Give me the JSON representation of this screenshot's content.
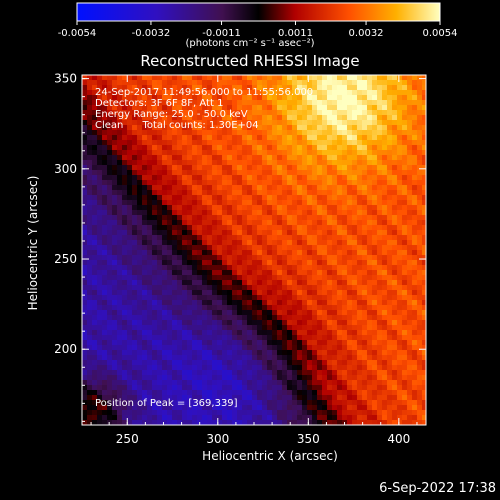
{
  "chart_data": {
    "type": "heatmap",
    "title": "Reconstructed RHESSI Image",
    "xlabel": "Heliocentric X (arcsec)",
    "ylabel": "Heliocentric Y (arcsec)",
    "xlim": [
      225,
      415
    ],
    "ylim": [
      158,
      352
    ],
    "x_ticks": [
      250,
      300,
      350,
      400
    ],
    "y_ticks": [
      200,
      250,
      300,
      350
    ],
    "colorbar": {
      "range": [
        -0.0054,
        0.0054
      ],
      "tick_values": [
        -0.0054,
        -0.0032,
        -0.0011,
        0.0011,
        0.0032,
        0.0054
      ],
      "tick_labels": [
        "-0.0054",
        "-0.0032",
        "-0.0011",
        "0.0011",
        "0.0032",
        "0.0054"
      ],
      "unit_label": "(photons cm⁻² s⁻¹ asec⁻²)"
    },
    "annotations": [
      "24-Sep-2017 11:49:56.000 to 11:55:56.000",
      "Detectors: 3F 6F 8F, Att 1",
      "Energy Range: 25.0 - 50.0 keV",
      "Clean      Total counts: 1.30E+04"
    ],
    "peak_label": "Position of Peak = [369,339]",
    "peak": [
      369,
      339
    ],
    "grid": false
  },
  "footer": {
    "timestamp": "6-Sep-2022 17:38"
  }
}
